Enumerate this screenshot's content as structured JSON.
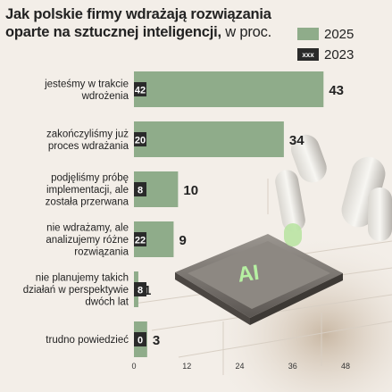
{
  "title": {
    "main": "Jak polskie firmy wdrażają rozwiązania oparte na sztucznej inteligencji,",
    "unit": "w proc."
  },
  "legend": [
    {
      "label": "2025",
      "swatch": "",
      "color": "#8fac8a"
    },
    {
      "label": "2023",
      "swatch": "xxx",
      "color": "#2a2a2a"
    }
  ],
  "chart_data": {
    "type": "bar",
    "orientation": "horizontal",
    "categories": [
      [
        "jesteśmy w trakcie",
        "wdrożenia"
      ],
      [
        "zakończyliśmy już",
        "proces wdrażania"
      ],
      [
        "podjęliśmy próbę",
        "implementacji, ale",
        "została przerwana"
      ],
      [
        "nie wdrażamy, ale",
        "analizujemy różne",
        "rozwiązania"
      ],
      [
        "nie planujemy takich",
        "działań w perspektywie",
        "dwóch lat"
      ],
      [
        "trudno powiedzieć"
      ]
    ],
    "series": [
      {
        "name": "2025",
        "values": [
          43,
          34,
          10,
          9,
          1,
          3
        ],
        "color": "#8fac8a"
      },
      {
        "name": "2023",
        "values": [
          42,
          20,
          8,
          22,
          8,
          0
        ],
        "color": "#2a2a2a"
      }
    ],
    "xlim": [
      0,
      48
    ],
    "xticks": [
      "0",
      "12",
      "24",
      "36",
      "48"
    ],
    "grid": false,
    "legend_position": "top-right"
  }
}
